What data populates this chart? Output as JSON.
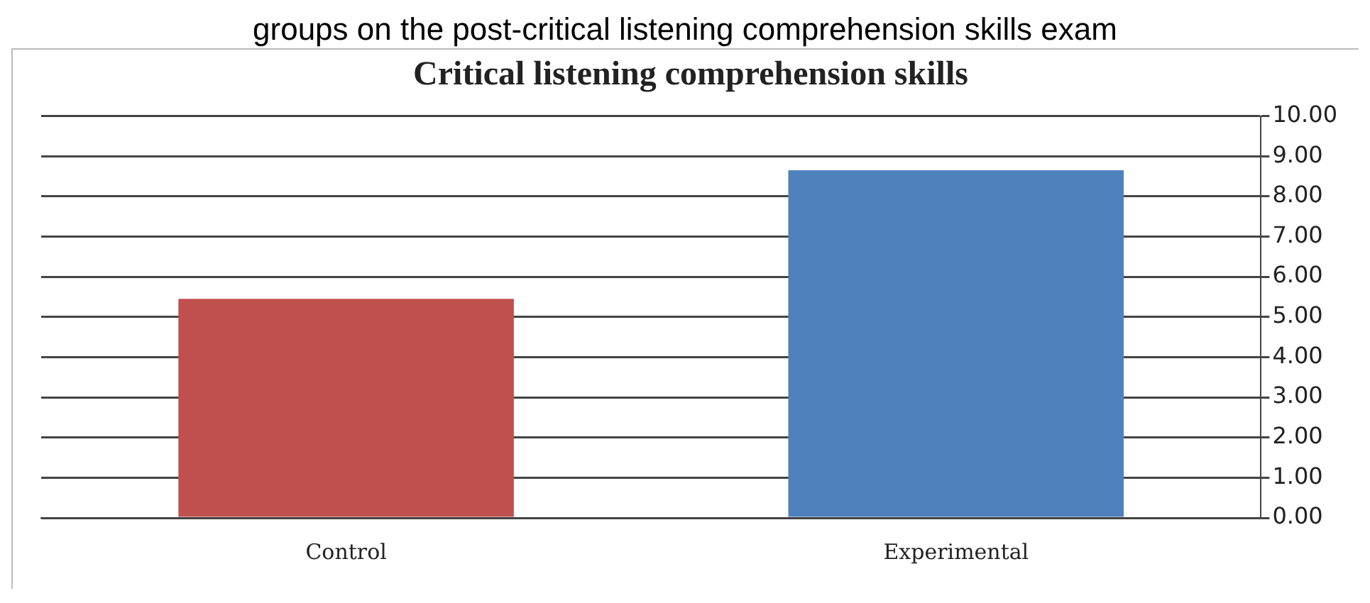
{
  "chart_data": {
    "type": "bar",
    "title": "Critical listening comprehension skills",
    "annotations": [
      "groups on the post-critical listening comprehension skills exam"
    ],
    "categories": [
      "Control",
      "Experimental"
    ],
    "colors": [
      "#c0504d",
      "#4f81bd"
    ],
    "values": [
      5.45,
      8.65
    ],
    "ylim": [
      0,
      10
    ],
    "yticks": [
      {
        "value": 0,
        "label": "0.00"
      },
      {
        "value": 1,
        "label": "1.00"
      },
      {
        "value": 2,
        "label": "2.00"
      },
      {
        "value": 3,
        "label": "3.00"
      },
      {
        "value": 4,
        "label": "4.00"
      },
      {
        "value": 5,
        "label": "5.00"
      },
      {
        "value": 6,
        "label": "6.00"
      },
      {
        "value": 7,
        "label": "7.00"
      },
      {
        "value": 8,
        "label": "8.00"
      },
      {
        "value": 9,
        "label": "9.00"
      },
      {
        "value": 10,
        "label": "10.00"
      }
    ],
    "grid": "y",
    "legend": false
  }
}
